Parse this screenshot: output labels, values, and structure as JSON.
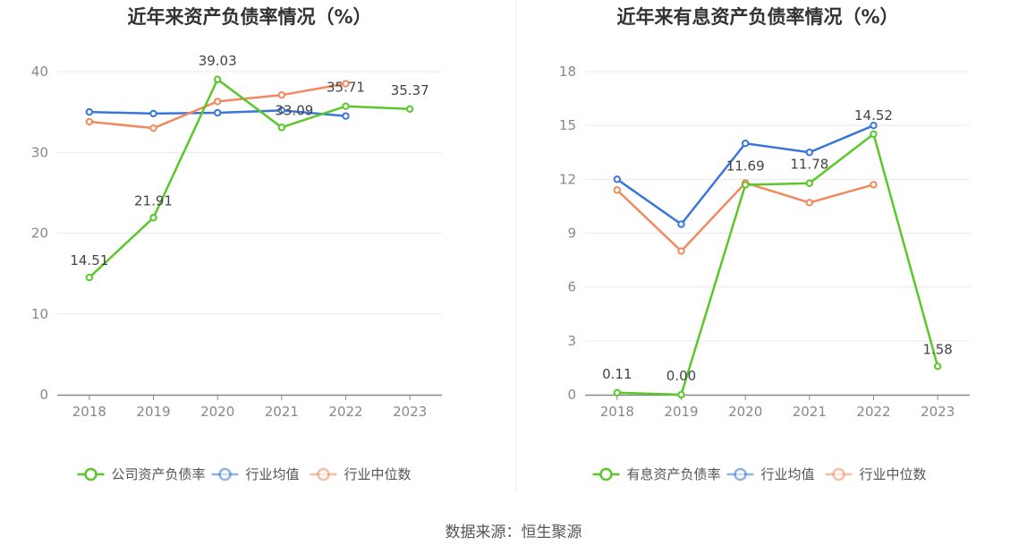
{
  "source_text": "数据来源：恒生聚源",
  "colors": {
    "company": "#5ac72a",
    "industry_avg": "#3a75dc",
    "industry_median": "#f2895c",
    "grid": "#e6e9f2",
    "axis": "#888888"
  },
  "chart_data": [
    {
      "type": "line",
      "title": "近年来资产负债率情况（%）",
      "x": [
        "2018",
        "2019",
        "2020",
        "2021",
        "2022",
        "2023"
      ],
      "ylim": [
        0,
        40
      ],
      "yticks": [
        0,
        10,
        20,
        30,
        40
      ],
      "grid": true,
      "legend_position": "bottom",
      "series": [
        {
          "name": "公司资产负债率",
          "key": "company",
          "values": [
            14.51,
            21.91,
            39.03,
            33.09,
            35.71,
            35.37
          ],
          "labels": [
            "14.51",
            "21.91",
            "39.03",
            "33.09",
            "35.71",
            "35.37"
          ]
        },
        {
          "name": "行业均值",
          "key": "industry_avg",
          "values": [
            35.0,
            34.8,
            34.9,
            35.2,
            34.5,
            null
          ]
        },
        {
          "name": "行业中位数",
          "key": "industry_median",
          "values": [
            33.8,
            33.0,
            36.3,
            37.1,
            38.5,
            null
          ]
        }
      ]
    },
    {
      "type": "line",
      "title": "近年来有息资产负债率情况（%）",
      "x": [
        "2018",
        "2019",
        "2020",
        "2021",
        "2022",
        "2023"
      ],
      "ylim": [
        0,
        18
      ],
      "yticks": [
        0,
        3,
        6,
        9,
        12,
        15,
        18
      ],
      "grid": true,
      "legend_position": "bottom",
      "series": [
        {
          "name": "有息资产负债率",
          "key": "company",
          "values": [
            0.11,
            0.0,
            11.69,
            11.78,
            14.52,
            1.58
          ],
          "labels": [
            "0.11",
            "0.00",
            "11.69",
            "11.78",
            "14.52",
            "1.58"
          ]
        },
        {
          "name": "行业均值",
          "key": "industry_avg",
          "values": [
            12.0,
            9.5,
            14.0,
            13.5,
            15.0,
            null
          ]
        },
        {
          "name": "行业中位数",
          "key": "industry_median",
          "values": [
            11.4,
            8.0,
            11.8,
            10.7,
            11.7,
            null
          ]
        }
      ]
    }
  ]
}
